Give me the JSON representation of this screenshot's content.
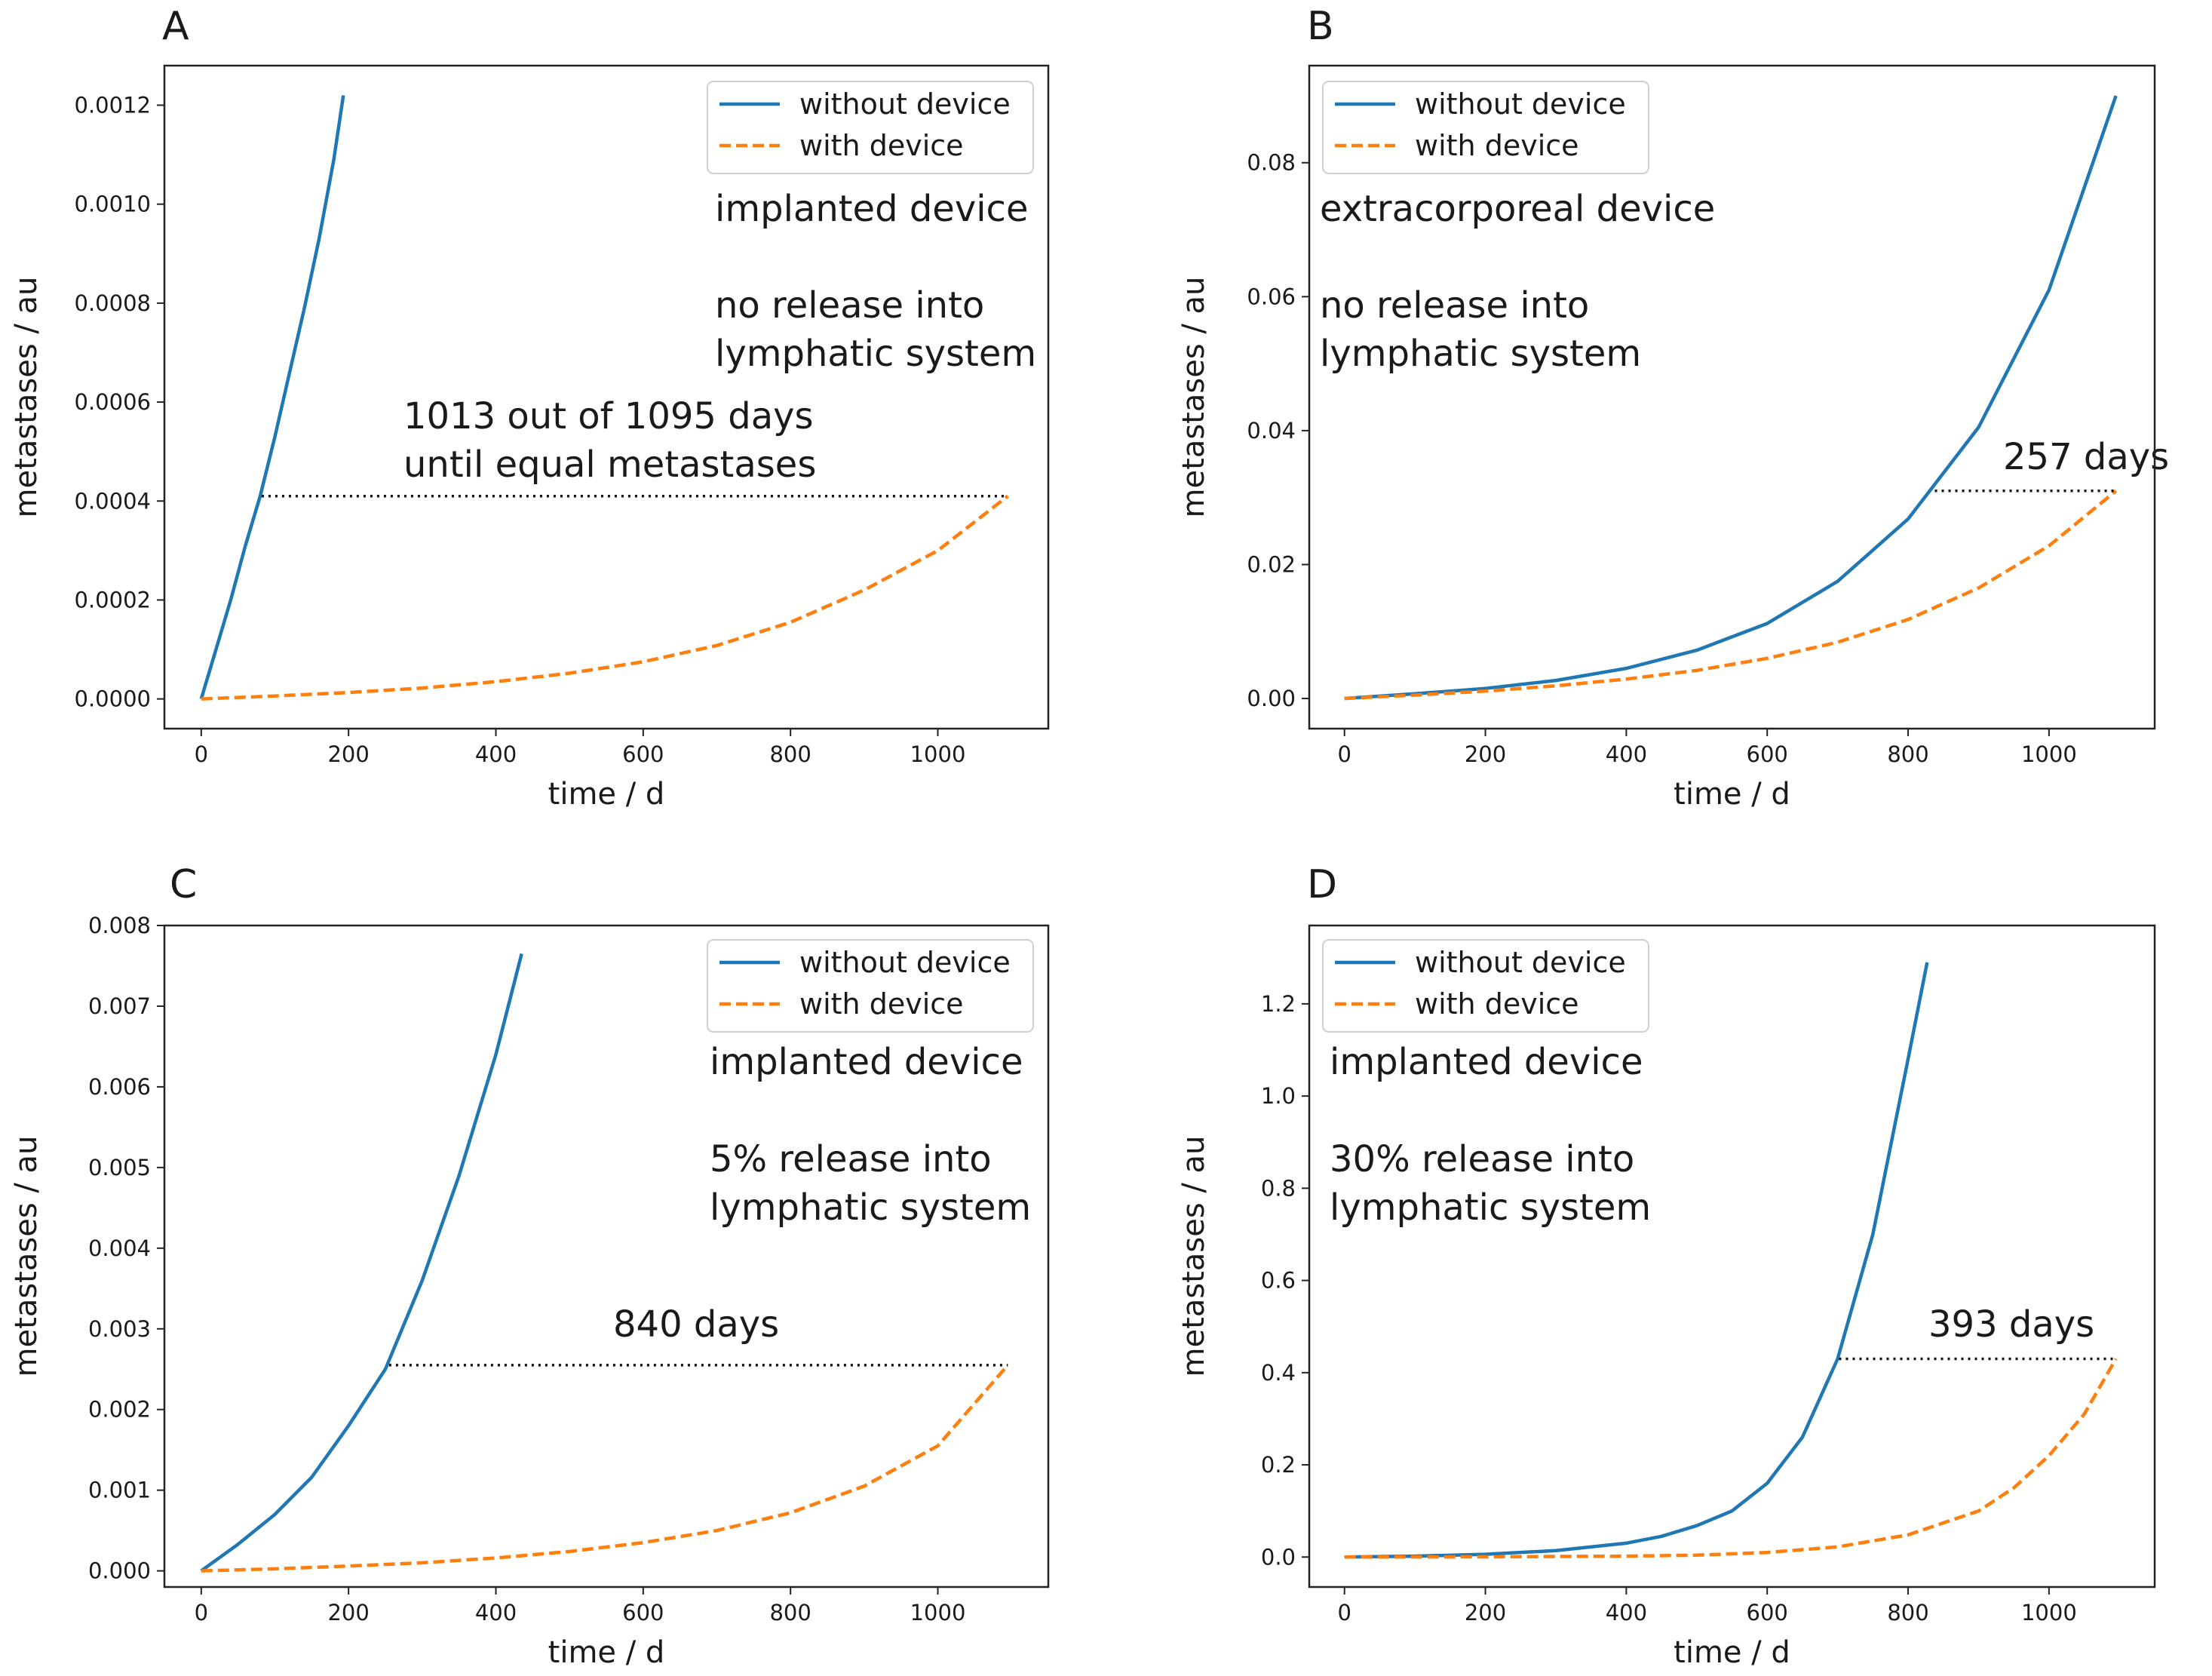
{
  "chart_data": [
    {
      "panel": "A",
      "type": "line",
      "xlabel": "time / d",
      "ylabel": "metastases / au",
      "xlim": [
        -50,
        1150
      ],
      "ylim": [
        -6e-05,
        0.00128
      ],
      "xticks": [
        0,
        200,
        400,
        600,
        800,
        1000
      ],
      "xtick_labels": [
        "0",
        "200",
        "400",
        "600",
        "800",
        "1000"
      ],
      "yticks": [
        0,
        0.0002,
        0.0004,
        0.0006,
        0.0008,
        0.001,
        0.0012
      ],
      "ytick_labels": [
        "0.0000",
        "0.0002",
        "0.0004",
        "0.0006",
        "0.0008",
        "0.0010",
        "0.0012"
      ],
      "legend": {
        "placement": "top-right",
        "entries": [
          "without device",
          "with device"
        ]
      },
      "annotations": [
        "implanted device",
        "no release into",
        "lymphatic system",
        "1013 out of 1095 days",
        "until equal metastases"
      ],
      "equal_level": {
        "y": 0.00041,
        "x_start": 82,
        "x_end": 1095
      },
      "series": [
        {
          "name": "without device",
          "style": "solid",
          "color": "#1f77b4",
          "x": [
            0,
            20,
            40,
            60,
            80,
            100,
            120,
            140,
            160,
            180,
            193
          ],
          "y": [
            0,
            0.0001,
            0.0002,
            0.00031,
            0.00041,
            0.00053,
            0.00066,
            0.00079,
            0.00093,
            0.00109,
            0.00122
          ]
        },
        {
          "name": "with device",
          "style": "dashed",
          "color": "#ff7f0e",
          "x": [
            0,
            100,
            200,
            300,
            400,
            500,
            600,
            700,
            800,
            900,
            1000,
            1095
          ],
          "y": [
            0,
            6e-06,
            1.3e-05,
            2.2e-05,
            3.5e-05,
            5.2e-05,
            7.5e-05,
            0.000108,
            0.000155,
            0.00022,
            0.0003,
            0.00041
          ]
        }
      ]
    },
    {
      "panel": "B",
      "type": "line",
      "xlabel": "time / d",
      "ylabel": "metastases / au",
      "xlim": [
        -50,
        1150
      ],
      "ylim": [
        -0.0045,
        0.0945
      ],
      "xticks": [
        0,
        200,
        400,
        600,
        800,
        1000
      ],
      "xtick_labels": [
        "0",
        "200",
        "400",
        "600",
        "800",
        "1000"
      ],
      "yticks": [
        0,
        0.02,
        0.04,
        0.06,
        0.08
      ],
      "ytick_labels": [
        "0.00",
        "0.02",
        "0.04",
        "0.06",
        "0.08"
      ],
      "legend": {
        "placement": "top-left",
        "entries": [
          "without device",
          "with device"
        ]
      },
      "annotations": [
        "extracorporeal device",
        "no release into",
        "lymphatic system",
        "257 days"
      ],
      "equal_level": {
        "y": 0.031,
        "x_start": 838,
        "x_end": 1095
      },
      "series": [
        {
          "name": "without device",
          "style": "solid",
          "color": "#1f77b4",
          "x": [
            0,
            100,
            200,
            300,
            400,
            500,
            600,
            700,
            800,
            900,
            1000,
            1095
          ],
          "y": [
            0,
            0.0007,
            0.0015,
            0.0027,
            0.0045,
            0.0072,
            0.0112,
            0.0175,
            0.0268,
            0.0405,
            0.061,
            0.09
          ]
        },
        {
          "name": "with device",
          "style": "dashed",
          "color": "#ff7f0e",
          "x": [
            0,
            100,
            200,
            300,
            400,
            500,
            600,
            700,
            800,
            900,
            1000,
            1095
          ],
          "y": [
            0,
            0.0005,
            0.0011,
            0.0019,
            0.0029,
            0.0042,
            0.006,
            0.0084,
            0.0118,
            0.0165,
            0.0228,
            0.031
          ]
        }
      ]
    },
    {
      "panel": "C",
      "type": "line",
      "xlabel": "time / d",
      "ylabel": "metastases / au",
      "xlim": [
        -50,
        1150
      ],
      "ylim": [
        -0.0002,
        0.008
      ],
      "xticks": [
        0,
        200,
        400,
        600,
        800,
        1000
      ],
      "xtick_labels": [
        "0",
        "200",
        "400",
        "600",
        "800",
        "1000"
      ],
      "yticks": [
        0,
        0.001,
        0.002,
        0.003,
        0.004,
        0.005,
        0.006,
        0.007,
        0.008
      ],
      "ytick_labels": [
        "0.000",
        "0.001",
        "0.002",
        "0.003",
        "0.004",
        "0.005",
        "0.006",
        "0.007",
        "0.008"
      ],
      "legend": {
        "placement": "top-right",
        "entries": [
          "without device",
          "with device"
        ]
      },
      "annotations": [
        "implanted device",
        "5% release into",
        "lymphatic system",
        "840 days"
      ],
      "equal_level": {
        "y": 0.00255,
        "x_start": 255,
        "x_end": 1095
      },
      "series": [
        {
          "name": "without device",
          "style": "solid",
          "color": "#1f77b4",
          "x": [
            0,
            50,
            100,
            150,
            200,
            250,
            300,
            350,
            400,
            435
          ],
          "y": [
            0,
            0.00033,
            0.0007,
            0.00116,
            0.0018,
            0.0025,
            0.0036,
            0.0049,
            0.0064,
            0.00765
          ]
        },
        {
          "name": "with device",
          "style": "dashed",
          "color": "#ff7f0e",
          "x": [
            0,
            100,
            200,
            300,
            400,
            500,
            600,
            700,
            800,
            900,
            1000,
            1095
          ],
          "y": [
            0,
            2.5e-05,
            6e-05,
            0.0001,
            0.00016,
            0.00024,
            0.00035,
            0.0005,
            0.00072,
            0.00105,
            0.00155,
            0.00255
          ]
        }
      ]
    },
    {
      "panel": "D",
      "type": "line",
      "xlabel": "time / d",
      "ylabel": "metastases / au",
      "xlim": [
        -50,
        1150
      ],
      "ylim": [
        -0.065,
        1.37
      ],
      "xticks": [
        0,
        200,
        400,
        600,
        800,
        1000
      ],
      "xtick_labels": [
        "0",
        "200",
        "400",
        "600",
        "800",
        "1000"
      ],
      "yticks": [
        0,
        0.2,
        0.4,
        0.6,
        0.8,
        1.0,
        1.2
      ],
      "ytick_labels": [
        "0.0",
        "0.2",
        "0.4",
        "0.6",
        "0.8",
        "1.0",
        "1.2"
      ],
      "legend": {
        "placement": "top-left",
        "entries": [
          "without device",
          "with device"
        ]
      },
      "annotations": [
        "implanted device",
        "30% release into",
        "lymphatic system",
        "393 days"
      ],
      "equal_level": {
        "y": 0.43,
        "x_start": 702,
        "x_end": 1095
      },
      "series": [
        {
          "name": "without device",
          "style": "solid",
          "color": "#1f77b4",
          "x": [
            0,
            100,
            200,
            300,
            400,
            450,
            500,
            550,
            600,
            650,
            700,
            750,
            800,
            827
          ],
          "y": [
            0,
            0.002,
            0.006,
            0.014,
            0.03,
            0.045,
            0.068,
            0.1,
            0.16,
            0.26,
            0.43,
            0.7,
            1.08,
            1.29
          ]
        },
        {
          "name": "with device",
          "style": "dashed",
          "color": "#ff7f0e",
          "x": [
            0,
            200,
            400,
            500,
            600,
            700,
            800,
            900,
            950,
            1000,
            1050,
            1095
          ],
          "y": [
            0,
            0.0005,
            0.002,
            0.004,
            0.01,
            0.022,
            0.048,
            0.1,
            0.15,
            0.22,
            0.31,
            0.43
          ]
        }
      ]
    }
  ]
}
